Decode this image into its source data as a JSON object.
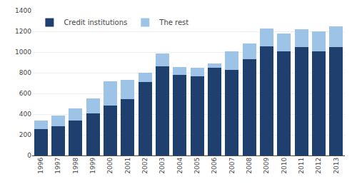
{
  "chart_data": {
    "type": "bar",
    "stacked": true,
    "categories": [
      "1996",
      "1997",
      "1998",
      "1999",
      "2000",
      "2001",
      "2002",
      "2003",
      "2004",
      "2005",
      "2006",
      "2007",
      "2008",
      "2009",
      "2010",
      "2011",
      "2012",
      "2013"
    ],
    "series": [
      {
        "name": "Credit institutions",
        "color": "#1F3F6E",
        "values": [
          255,
          285,
          335,
          410,
          485,
          545,
          710,
          860,
          780,
          765,
          845,
          830,
          930,
          1055,
          1010,
          1045,
          1010,
          1050
        ]
      },
      {
        "name": "The rest",
        "color": "#9DC3E6",
        "values": [
          80,
          100,
          120,
          145,
          230,
          185,
          90,
          125,
          75,
          80,
          45,
          175,
          155,
          170,
          170,
          175,
          190,
          200
        ]
      }
    ],
    "ylim": [
      0,
      1400
    ],
    "yticks": [
      0,
      200,
      400,
      600,
      800,
      1000,
      1200,
      1400
    ],
    "grid": true,
    "legend": "upper left"
  }
}
